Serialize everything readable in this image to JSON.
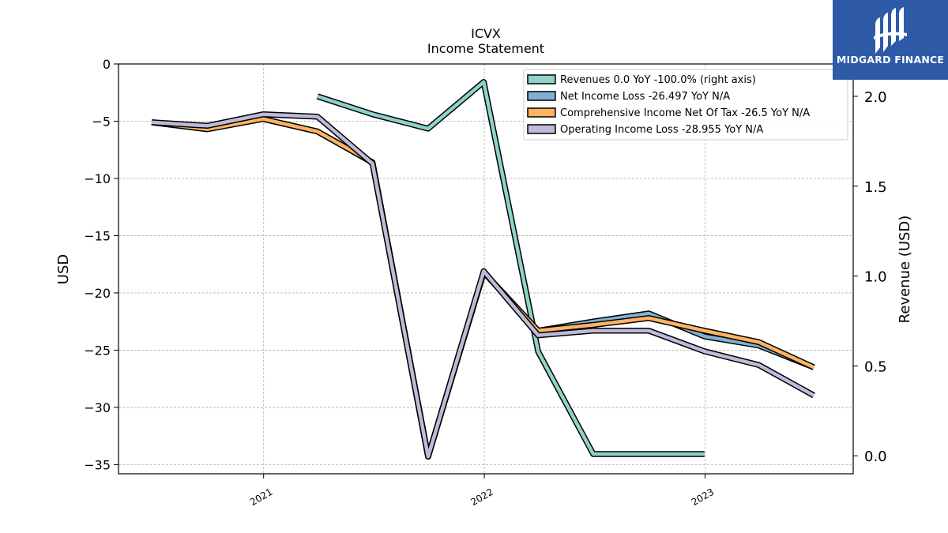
{
  "chart_data": {
    "type": "line",
    "title": "ICVX",
    "subtitle": "Income Statement",
    "ylabel": "USD",
    "ylabel_right": "Revenue (USD)",
    "ylim": [
      -35.8,
      0
    ],
    "ylim_right": [
      -0.1,
      2.18
    ],
    "yticks": [
      0,
      -5,
      -10,
      -15,
      -20,
      -25,
      -30,
      -35
    ],
    "yticks_right": [
      0.0,
      0.5,
      1.0,
      1.5,
      2.0
    ],
    "xlim": [
      "2020-05-06",
      "2023-09-03"
    ],
    "xticks": [
      {
        "date": "2021-01-01",
        "label": "2021"
      },
      {
        "date": "2022-01-01",
        "label": "2022"
      },
      {
        "date": "2023-01-01",
        "label": "2023"
      }
    ],
    "grid": true,
    "legend_position": "top-right",
    "series": [
      {
        "name": "Revenues  0.0 YoY -100.0% (right axis)",
        "axis": "right",
        "color": "#8dd3c7",
        "points": [
          [
            "2021-03-31",
            2.0
          ],
          [
            "2021-06-30",
            1.9
          ],
          [
            "2021-09-30",
            1.82
          ],
          [
            "2021-12-31",
            2.08
          ],
          [
            "2022-03-31",
            0.58
          ],
          [
            "2022-06-30",
            0.01
          ],
          [
            "2022-09-30",
            0.01
          ],
          [
            "2022-12-31",
            0.01
          ]
        ]
      },
      {
        "name": "Net Income Loss  -26.497 YoY N/A",
        "axis": "left",
        "color": "#80b1d3",
        "points": [
          [
            "2020-06-30",
            -5.1
          ],
          [
            "2020-09-30",
            -5.7
          ],
          [
            "2020-12-31",
            -4.8
          ],
          [
            "2021-03-31",
            -5.9
          ],
          [
            "2021-06-30",
            -8.6
          ],
          [
            "2021-09-30",
            -34.3
          ],
          [
            "2021-12-31",
            -18.2
          ],
          [
            "2022-03-31",
            -23.3
          ],
          [
            "2022-06-30",
            -22.5
          ],
          [
            "2022-09-30",
            -21.8
          ],
          [
            "2022-12-31",
            -23.8
          ],
          [
            "2023-03-31",
            -24.6
          ],
          [
            "2023-06-30",
            -26.5
          ]
        ]
      },
      {
        "name": "Comprehensive Income Net Of Tax  -26.5 YoY N/A",
        "axis": "left",
        "color": "#fdb462",
        "points": [
          [
            "2020-06-30",
            -5.1
          ],
          [
            "2020-09-30",
            -5.7
          ],
          [
            "2020-12-31",
            -4.8
          ],
          [
            "2021-03-31",
            -5.9
          ],
          [
            "2021-06-30",
            -8.6
          ],
          [
            "2021-09-30",
            -34.3
          ],
          [
            "2021-12-31",
            -18.2
          ],
          [
            "2022-03-31",
            -23.3
          ],
          [
            "2022-06-30",
            -22.8
          ],
          [
            "2022-09-30",
            -22.2
          ],
          [
            "2022-12-31",
            -23.3
          ],
          [
            "2023-03-31",
            -24.3
          ],
          [
            "2023-06-30",
            -26.5
          ]
        ]
      },
      {
        "name": "Operating Income Loss  -28.955 YoY N/A",
        "axis": "left",
        "color": "#bebada",
        "points": [
          [
            "2020-06-30",
            -5.1
          ],
          [
            "2020-09-30",
            -5.4
          ],
          [
            "2020-12-31",
            -4.4
          ],
          [
            "2021-03-31",
            -4.6
          ],
          [
            "2021-06-30",
            -8.7
          ],
          [
            "2021-09-30",
            -34.3
          ],
          [
            "2021-12-31",
            -18.1
          ],
          [
            "2022-03-31",
            -23.7
          ],
          [
            "2022-06-30",
            -23.3
          ],
          [
            "2022-09-30",
            -23.3
          ],
          [
            "2022-12-31",
            -25.1
          ],
          [
            "2023-03-31",
            -26.3
          ],
          [
            "2023-06-30",
            -28.96
          ]
        ]
      }
    ]
  },
  "logo": {
    "text": "MIDGARD FINANCE",
    "icon": "midgard-logo-icon",
    "bg_color": "#2f5aa8"
  }
}
